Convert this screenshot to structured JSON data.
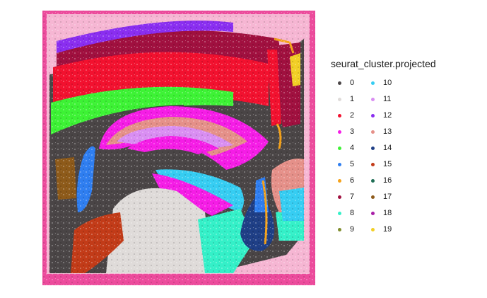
{
  "chart_data": {
    "type": "scatter",
    "legend": {
      "title": "seurat_cluster.projected",
      "placement": "right",
      "columns": 2
    },
    "series": [
      {
        "name": "0",
        "color": "#4a4546"
      },
      {
        "name": "1",
        "color": "#dfdbd9"
      },
      {
        "name": "2",
        "color": "#f2112f"
      },
      {
        "name": "3",
        "color": "#f51de6"
      },
      {
        "name": "4",
        "color": "#3df235"
      },
      {
        "name": "5",
        "color": "#2f7ef0"
      },
      {
        "name": "6",
        "color": "#f5a21a"
      },
      {
        "name": "7",
        "color": "#a0103f"
      },
      {
        "name": "8",
        "color": "#34f0c8"
      },
      {
        "name": "9",
        "color": "#7f8d2d"
      },
      {
        "name": "10",
        "color": "#36cdf2"
      },
      {
        "name": "11",
        "color": "#d98ef2"
      },
      {
        "name": "12",
        "color": "#8a2ef0"
      },
      {
        "name": "13",
        "color": "#e59089"
      },
      {
        "name": "14",
        "color": "#1f3f86"
      },
      {
        "name": "15",
        "color": "#c23b18"
      },
      {
        "name": "16",
        "color": "#1f6e55"
      },
      {
        "name": "17",
        "color": "#8d5a1a"
      },
      {
        "name": "18",
        "color": "#a81ea7"
      },
      {
        "name": "19",
        "color": "#f2cf26"
      }
    ],
    "background_tissue_color": "#f2a5c8",
    "tissue_border_color": "#ec4b9c"
  }
}
